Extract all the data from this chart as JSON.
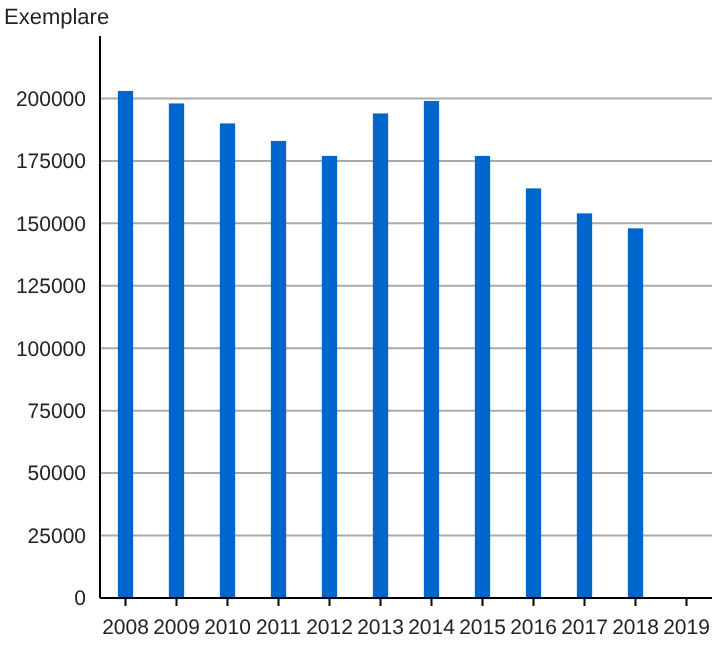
{
  "chart_data": {
    "type": "bar",
    "ylabel": "Exemplare",
    "categories": [
      "2008",
      "2009",
      "2010",
      "2011",
      "2012",
      "2013",
      "2014",
      "2015",
      "2016",
      "2017",
      "2018",
      "2019"
    ],
    "series": [
      {
        "color": "#0066cc",
        "values": [
          203000,
          198000,
          190000,
          183000,
          177000,
          194000,
          199000,
          177000,
          164000,
          154000,
          148000,
          null
        ]
      }
    ],
    "ylim": [
      0,
      225000
    ],
    "yticks": [
      0,
      25000,
      50000,
      75000,
      100000,
      125000,
      150000,
      175000,
      200000
    ],
    "grid": "y"
  }
}
